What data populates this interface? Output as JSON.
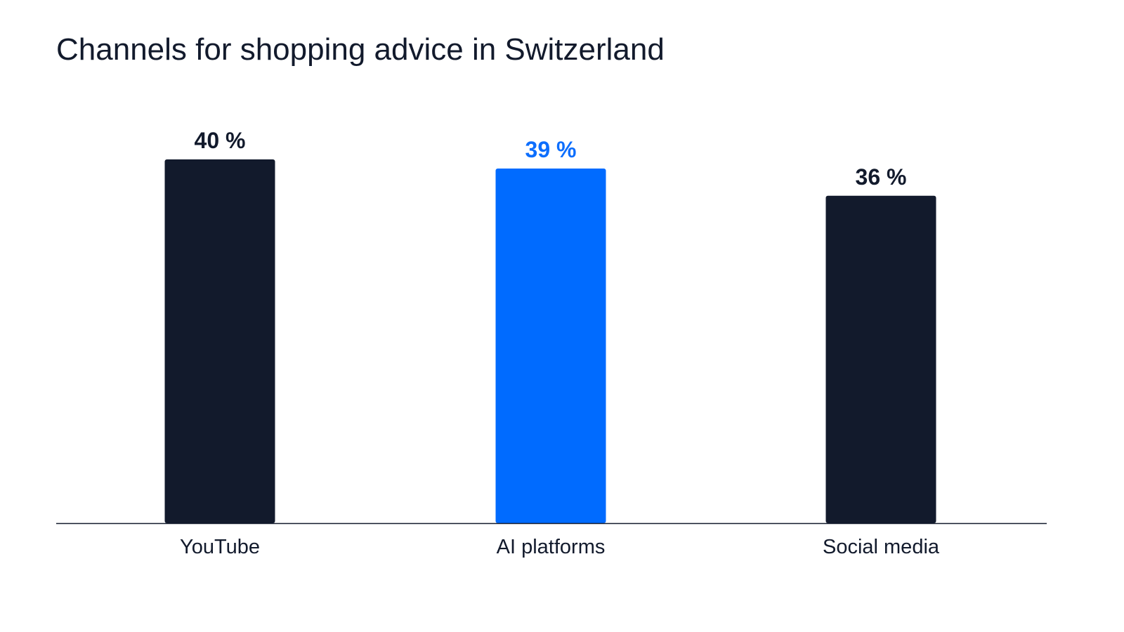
{
  "chart_data": {
    "type": "bar",
    "title": "Channels for shopping advice in Switzerland",
    "categories": [
      "YouTube",
      "AI platforms",
      "Social media"
    ],
    "values": [
      40,
      39,
      36
    ],
    "value_labels": [
      "40 %",
      "39 %",
      "36 %"
    ],
    "unit": "%",
    "xlabel": "",
    "ylabel": "",
    "ylim": [
      0,
      40
    ],
    "grid": false,
    "legend": "none",
    "bar_colors": [
      "#121a2c",
      "#006bff",
      "#121a2c"
    ],
    "label_colors": [
      "#121a2c",
      "#0d6efd",
      "#121a2c"
    ],
    "axis_color": "#121a2c"
  }
}
